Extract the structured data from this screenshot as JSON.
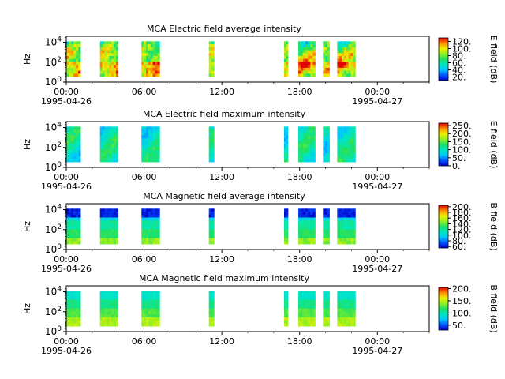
{
  "chart_data": [
    {
      "type": "heatmap",
      "title": "MCA  Electric field average intensity",
      "ylabel": "Hz",
      "y_scale": "log",
      "y_ticks": [
        "10^0",
        "10^2",
        "10^4"
      ],
      "x_ticks": [
        {
          "time": "00:00",
          "date": "1995-04-26"
        },
        {
          "time": "06:00",
          "date": ""
        },
        {
          "time": "12:00",
          "date": ""
        },
        {
          "time": "18:00",
          "date": ""
        },
        {
          "time": "00:00",
          "date": "1995-04-27"
        }
      ],
      "colorbar": {
        "label": "E field (dB)",
        "ticks": [
          "20.",
          "40.",
          "60.",
          "80.",
          "100.",
          "120."
        ],
        "min": 10,
        "max": 130
      },
      "data_intervals_hours": [
        [
          0.0,
          1.1
        ],
        [
          2.6,
          4.0
        ],
        [
          5.8,
          7.2
        ],
        [
          11.0,
          11.4
        ],
        [
          16.8,
          17.1
        ],
        [
          17.9,
          19.2
        ],
        [
          19.8,
          20.3
        ],
        [
          20.9,
          22.3
        ]
      ],
      "profile": "eavg"
    },
    {
      "type": "heatmap",
      "title": "MCA  Electric field maximum intensity",
      "ylabel": "Hz",
      "y_scale": "log",
      "y_ticks": [
        "10^0",
        "10^2",
        "10^4"
      ],
      "x_ticks": [
        {
          "time": "00:00",
          "date": "1995-04-26"
        },
        {
          "time": "06:00",
          "date": ""
        },
        {
          "time": "12:00",
          "date": ""
        },
        {
          "time": "18:00",
          "date": ""
        },
        {
          "time": "00:00",
          "date": "1995-04-27"
        }
      ],
      "colorbar": {
        "label": "E field (dB)",
        "ticks": [
          "0.",
          "50.",
          "100.",
          "150.",
          "200.",
          "250."
        ],
        "min": 0,
        "max": 265
      },
      "data_intervals_hours": [
        [
          0.0,
          1.1
        ],
        [
          2.6,
          4.0
        ],
        [
          5.8,
          7.2
        ],
        [
          11.0,
          11.4
        ],
        [
          16.8,
          17.1
        ],
        [
          17.9,
          19.2
        ],
        [
          19.8,
          20.3
        ],
        [
          20.9,
          22.3
        ]
      ],
      "profile": "emax"
    },
    {
      "type": "heatmap",
      "title": "MCA  Magnetic field average intensity",
      "ylabel": "Hz",
      "y_scale": "log",
      "y_ticks": [
        "10^0",
        "10^2",
        "10^4"
      ],
      "x_ticks": [
        {
          "time": "00:00",
          "date": "1995-04-26"
        },
        {
          "time": "06:00",
          "date": ""
        },
        {
          "time": "12:00",
          "date": ""
        },
        {
          "time": "18:00",
          "date": ""
        },
        {
          "time": "00:00",
          "date": "1995-04-27"
        }
      ],
      "colorbar": {
        "label": "B field (dB)",
        "ticks": [
          "60.",
          "80.",
          "100.",
          "120.",
          "140.",
          "160.",
          "180.",
          "200."
        ],
        "min": 55,
        "max": 205
      },
      "data_intervals_hours": [
        [
          0.0,
          1.1
        ],
        [
          2.6,
          4.0
        ],
        [
          5.8,
          7.2
        ],
        [
          11.0,
          11.4
        ],
        [
          16.8,
          17.1
        ],
        [
          17.9,
          19.2
        ],
        [
          19.8,
          20.3
        ],
        [
          20.9,
          22.3
        ]
      ],
      "profile": "bavg"
    },
    {
      "type": "heatmap",
      "title": "MCA  Magnetic field maximum intensity",
      "ylabel": "Hz",
      "y_scale": "log",
      "y_ticks": [
        "10^0",
        "10^2",
        "10^4"
      ],
      "x_ticks": [
        {
          "time": "00:00",
          "date": "1995-04-26"
        },
        {
          "time": "06:00",
          "date": ""
        },
        {
          "time": "12:00",
          "date": ""
        },
        {
          "time": "18:00",
          "date": ""
        },
        {
          "time": "00:00",
          "date": "1995-04-27"
        }
      ],
      "colorbar": {
        "label": "B field (dB)",
        "ticks": [
          "50.",
          "100.",
          "150.",
          "200."
        ],
        "min": 30,
        "max": 205
      },
      "data_intervals_hours": [
        [
          0.0,
          1.1
        ],
        [
          2.6,
          4.0
        ],
        [
          5.8,
          7.2
        ],
        [
          11.0,
          11.4
        ],
        [
          16.8,
          17.1
        ],
        [
          17.9,
          19.2
        ],
        [
          19.8,
          20.3
        ],
        [
          20.9,
          22.3
        ]
      ],
      "profile": "bmax"
    }
  ]
}
